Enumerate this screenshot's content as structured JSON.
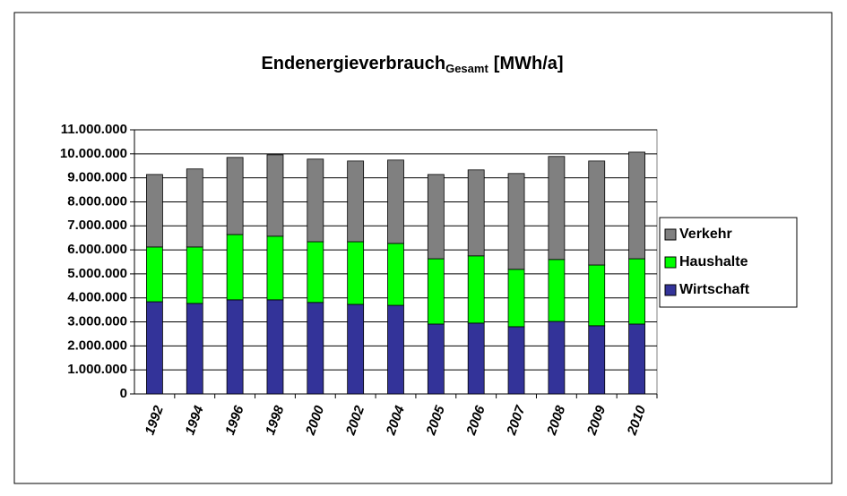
{
  "chart_data": {
    "type": "stacked_bar",
    "title": "Endenergieverbrauch",
    "title_subscript": "Gesamt",
    "title_unit": "[MWh/a]",
    "categories": [
      "1992",
      "1994",
      "1996",
      "1998",
      "2000",
      "2002",
      "2004",
      "2005",
      "2006",
      "2007",
      "2008",
      "2009",
      "2010"
    ],
    "series": [
      {
        "name": "Wirtschaft",
        "color": "#333399",
        "values": [
          3840000,
          3770000,
          3920000,
          3920000,
          3810000,
          3730000,
          3690000,
          2910000,
          2950000,
          2800000,
          3020000,
          2840000,
          2910000
        ]
      },
      {
        "name": "Haushalte",
        "color": "#00ff00",
        "values": [
          2280000,
          2350000,
          2720000,
          2650000,
          2530000,
          2610000,
          2580000,
          2720000,
          2800000,
          2390000,
          2580000,
          2530000,
          2720000
        ]
      },
      {
        "name": "Verkehr",
        "color": "#808080",
        "values": [
          3020000,
          3250000,
          3210000,
          3390000,
          3440000,
          3360000,
          3470000,
          3510000,
          3580000,
          3990000,
          4290000,
          4330000,
          4440000
        ]
      }
    ],
    "ylim": [
      0,
      11000000
    ],
    "yticks": [
      0,
      {
        "value": 1000000,
        "label": "1.000.000"
      },
      {
        "value": 2000000,
        "label": "2.000.000"
      },
      {
        "value": 3000000,
        "label": "3.000.000"
      },
      {
        "value": 4000000,
        "label": "4.000.000"
      },
      {
        "value": 5000000,
        "label": "5.000.000"
      },
      {
        "value": 6000000,
        "label": "6.000.000"
      },
      {
        "value": 7000000,
        "label": "7.000.000"
      },
      {
        "value": 8000000,
        "label": "8.000.000"
      },
      {
        "value": 9000000,
        "label": "9.000.000"
      },
      {
        "value": 10000000,
        "label": "10.000.000"
      },
      {
        "value": 11000000,
        "label": "11.000.000"
      }
    ],
    "grid": true,
    "legend": "right"
  }
}
